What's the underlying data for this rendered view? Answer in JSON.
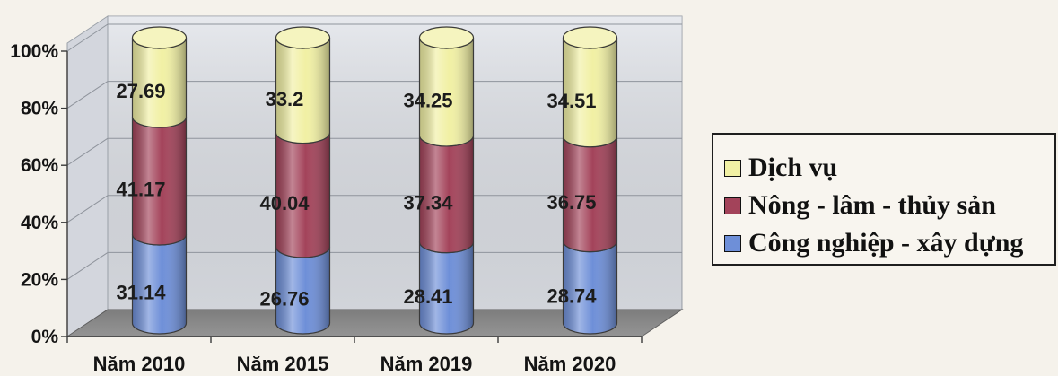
{
  "chart_data": {
    "type": "bar",
    "shape": "cylinder",
    "three_d": true,
    "stacked": true,
    "categories": [
      "Năm 2010",
      "Năm 2015",
      "Năm 2019",
      "Năm 2020"
    ],
    "series": [
      {
        "name": "Công nghiệp - xây dựng",
        "values": [
          31.14,
          26.76,
          28.41,
          28.74
        ],
        "color": "#6e8fd8"
      },
      {
        "name": "Nông - lâm - thủy sản",
        "values": [
          41.17,
          40.04,
          37.34,
          36.75
        ],
        "color": "#a3435a"
      },
      {
        "name": "Dịch vụ",
        "values": [
          27.69,
          33.2,
          34.25,
          34.51
        ],
        "color": "#f1f0a4"
      }
    ],
    "y_ticks": [
      "0%",
      "20%",
      "40%",
      "60%",
      "80%",
      "100%"
    ],
    "ylim": [
      0,
      100
    ],
    "grid": true,
    "legend_position": "right",
    "colors": {
      "back_wall": "#dfe2e8",
      "side_wall": "#d3d6dd",
      "floor": "#8a8a8a"
    }
  }
}
